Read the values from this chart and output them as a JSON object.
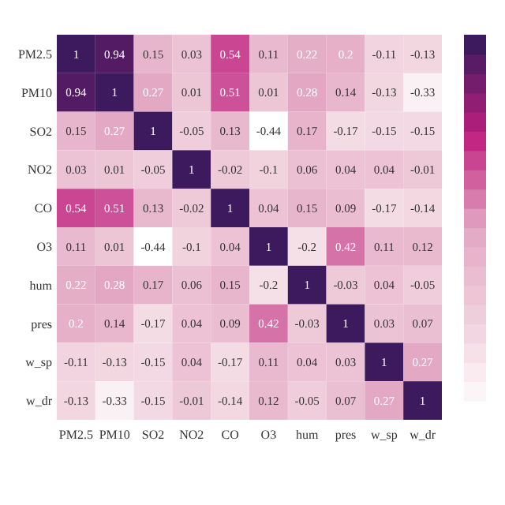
{
  "chart_data": {
    "type": "heatmap",
    "data_labels": true,
    "categories": [
      "PM2.5",
      "PM10",
      "SO2",
      "NO2",
      "CO",
      "O3",
      "hum",
      "pres",
      "w_sp",
      "w_dr"
    ],
    "y_categories": [
      "PM2.5",
      "PM10",
      "SO2",
      "NO2",
      "CO",
      "O3",
      "hum",
      "pres",
      "w_sp",
      "w_dr"
    ],
    "cells": [
      [
        1,
        0.94,
        0.15,
        0.03,
        0.54,
        0.11,
        0.22,
        0.2,
        -0.11,
        -0.13
      ],
      [
        0.94,
        1,
        0.27,
        0.01,
        0.51,
        0.01,
        0.28,
        0.14,
        -0.13,
        -0.33
      ],
      [
        0.15,
        0.27,
        1,
        -0.05,
        0.13,
        -0.44,
        0.17,
        -0.17,
        -0.15,
        -0.15
      ],
      [
        0.03,
        0.01,
        -0.05,
        1,
        -0.02,
        -0.1,
        0.06,
        0.04,
        0.04,
        -0.01
      ],
      [
        0.54,
        0.51,
        0.13,
        -0.02,
        1,
        0.04,
        0.15,
        0.09,
        -0.17,
        -0.14
      ],
      [
        0.11,
        0.01,
        -0.44,
        -0.1,
        0.04,
        1,
        -0.2,
        0.42,
        0.11,
        0.12
      ],
      [
        0.22,
        0.28,
        0.17,
        0.06,
        0.15,
        -0.2,
        1,
        -0.03,
        0.04,
        -0.05
      ],
      [
        0.2,
        0.14,
        -0.17,
        0.04,
        0.09,
        0.42,
        -0.03,
        1,
        0.03,
        0.07
      ],
      [
        -0.11,
        -0.13,
        -0.15,
        0.04,
        -0.17,
        0.11,
        0.04,
        0.03,
        1,
        0.27
      ],
      [
        -0.13,
        -0.33,
        -0.15,
        -0.01,
        -0.14,
        0.12,
        -0.05,
        0.07,
        0.27,
        1
      ]
    ]
  }
}
